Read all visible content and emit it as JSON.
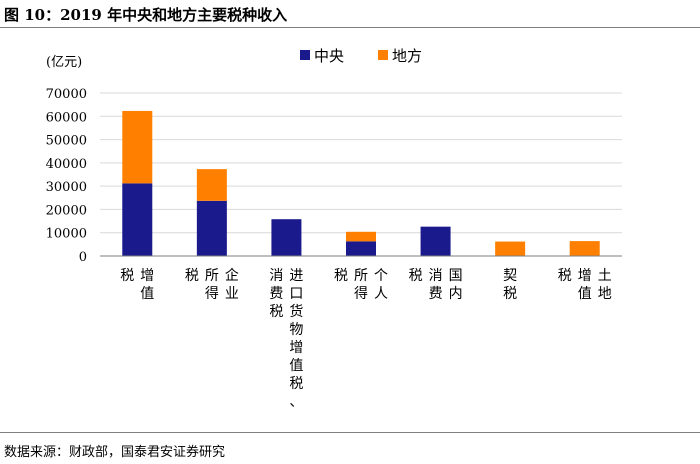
{
  "title": "图 10：2019 年中央和地方主要税种收入",
  "source": "数据来源：财政部，国泰君安证券研究",
  "chart_data": {
    "type": "bar",
    "stacked": true,
    "unit_label": "(亿元)",
    "categories": [
      [
        "增值",
        "税"
      ],
      [
        "企业",
        "所得",
        "税"
      ],
      [
        "进口货物增值税、",
        "消费税"
      ],
      [
        "个人",
        "所得",
        "税"
      ],
      [
        "国内",
        "消费",
        "税"
      ],
      [
        "契税"
      ],
      [
        "土地",
        "增值",
        "税"
      ]
    ],
    "series": [
      {
        "name": "中央",
        "color": "#1a1a8c",
        "values": [
          31200,
          23700,
          15800,
          6300,
          12600,
          0,
          0
        ]
      },
      {
        "name": "地方",
        "color": "#ff8000",
        "values": [
          31100,
          13600,
          0,
          4100,
          0,
          6200,
          6400
        ]
      }
    ],
    "ylim": [
      0,
      70000
    ],
    "yticks": [
      0,
      10000,
      20000,
      30000,
      40000,
      50000,
      60000,
      70000
    ],
    "grid": true,
    "legend_position": "top-right"
  }
}
